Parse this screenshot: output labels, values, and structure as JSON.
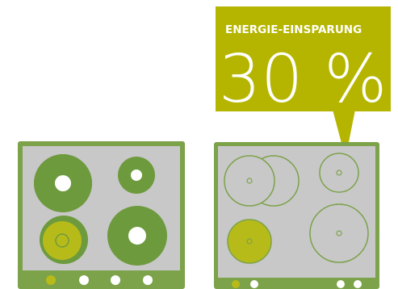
{
  "callout": {
    "title": "ENERGIE-EINSPARUNG",
    "value": "30 %"
  },
  "colors": {
    "accent": "#b5b500",
    "green": "#6e9a3e",
    "frame": "#7ca24a",
    "panel": "#c8c8c8",
    "white": "#ffffff",
    "highlight": "#b7bb1a"
  },
  "icons": [
    "cooktop-traditional-icon",
    "cooktop-induction-icon",
    "burner-icon",
    "control-knob-icon",
    "callout-pointer-icon"
  ]
}
